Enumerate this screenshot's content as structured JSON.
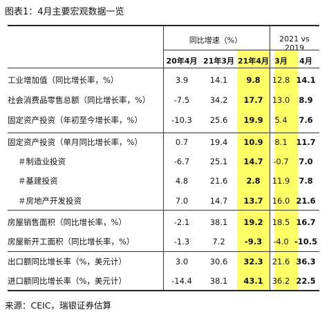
{
  "title": "图表1：4月主要宏观数据一览",
  "header": {
    "group1": "同比增速（%）",
    "group2": "2021 vs 2019",
    "cols": [
      "20年4月",
      "21年3月",
      "21年4月",
      "3月",
      "4月"
    ]
  },
  "rows": [
    {
      "label": "工业增加值（同比增长率，%）",
      "values": [
        "3.9",
        "14.1",
        "9.8",
        "12.8",
        "14.1"
      ]
    },
    {
      "label": "社会消费品零售总额（同比增长率，%）",
      "values": [
        "-7.5",
        "34.2",
        "17.7",
        "13.0",
        "8.9"
      ]
    },
    {
      "label": "固定资产投资（年初至今增长率，%）",
      "values": [
        "-10.3",
        "25.6",
        "19.9",
        "5.4",
        "7.6"
      ]
    },
    {
      "label": "固定资产投资（单月同比增长率，%）",
      "values": [
        "0.7",
        "19.4",
        "10.9",
        "8.1",
        "11.7"
      ]
    },
    {
      "label": "＃制造业投资",
      "values": [
        "-6.7",
        "25.1",
        "14.7",
        "-0.7",
        "7.0"
      ]
    },
    {
      "label": "＃基建投资",
      "values": [
        "4.8",
        "21.6",
        "2.8",
        "11.9",
        "7.8"
      ]
    },
    {
      "label": "＃房地产开发投资",
      "values": [
        "7.0",
        "14.7",
        "13.7",
        "16.0",
        "21.6"
      ]
    },
    {
      "label": "房屋销售面积（同比增长率，%）",
      "values": [
        "-2.1",
        "38.1",
        "19.2",
        "18.5",
        "16.7"
      ]
    },
    {
      "label": "房屋新开工面积（同比增长率，%）",
      "values": [
        "-1.3",
        "7.2",
        "-9.3",
        "-4.0",
        "-10.5"
      ]
    },
    {
      "label": "出口额同比增长率（%，美元计）",
      "values": [
        "3.0",
        "30.6",
        "32.3",
        "21.6",
        "36.3"
      ]
    },
    {
      "label": "进口额同比增长率（%，美元计）",
      "values": [
        "-14.4",
        "38.1",
        "43.1",
        "36.2",
        "22.5"
      ]
    }
  ],
  "source": "来源：CEIC，瑞银证券估算",
  "colors": {
    "highlight": "#ffff66"
  }
}
